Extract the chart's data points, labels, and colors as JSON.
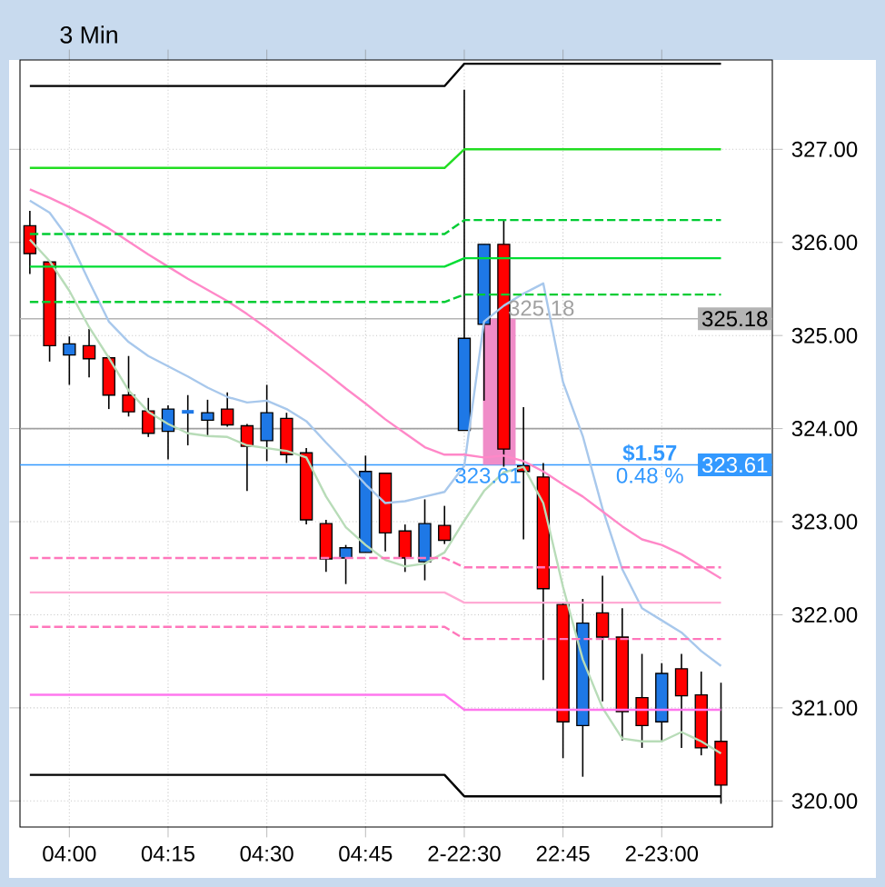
{
  "chart_data": {
    "type": "candlestick",
    "title": "3 Min",
    "categories": [
      null,
      null,
      "04:00",
      null,
      null,
      null,
      null,
      "04:15",
      null,
      null,
      null,
      null,
      "04:30",
      null,
      null,
      null,
      null,
      "04:45",
      null,
      null,
      null,
      null,
      "2-22:30",
      null,
      null,
      null,
      null,
      "22:45",
      null,
      null,
      null,
      null,
      "2-23:00",
      null,
      null,
      null
    ],
    "ylim": [
      319.72,
      327.96
    ],
    "yticks": [
      {
        "value": 320,
        "label": "320.00"
      },
      {
        "value": 321,
        "label": "321.00"
      },
      {
        "value": 322,
        "label": "322.00"
      },
      {
        "value": 323,
        "label": "323.00"
      },
      {
        "value": 324,
        "label": "324.00"
      },
      {
        "value": 325,
        "label": "325.00"
      },
      {
        "value": 326,
        "label": "326.00"
      },
      {
        "value": 327,
        "label": "327.00"
      }
    ],
    "grid": true,
    "series": [
      {
        "type": "bar",
        "color": "#f08cc8",
        "base": [
          null,
          null,
          null,
          null,
          null,
          null,
          null,
          null,
          null,
          null,
          null,
          null,
          null,
          null,
          null,
          null,
          null,
          null,
          null,
          null,
          null,
          null,
          null,
          null,
          323.61,
          null,
          null,
          null,
          null,
          null,
          null,
          null,
          null,
          null,
          null,
          null
        ],
        "values": [
          null,
          null,
          null,
          null,
          null,
          null,
          null,
          null,
          null,
          null,
          null,
          null,
          null,
          null,
          null,
          null,
          null,
          null,
          null,
          null,
          null,
          null,
          null,
          null,
          1.57,
          null,
          null,
          null,
          null,
          null,
          null,
          null,
          null,
          null,
          null,
          null
        ]
      },
      {
        "type": "line",
        "color": "#a8c8ec",
        "values": [
          326.45,
          326.32,
          326.03,
          325.58,
          325.15,
          324.93,
          324.78,
          324.67,
          324.56,
          324.44,
          324.34,
          324.28,
          324.3,
          324.21,
          324.08,
          323.85,
          323.63,
          323.4,
          323.2,
          323.22,
          323.27,
          323.32,
          323.6,
          325.15,
          325.32,
          325.45,
          325.56,
          324.5,
          323.92,
          323.14,
          322.49,
          322.07,
          321.94,
          321.81,
          321.61,
          321.45
        ]
      },
      {
        "type": "line",
        "color": "#ff88c8",
        "values": [
          326.57,
          326.48,
          326.38,
          326.27,
          326.15,
          326.01,
          325.87,
          325.74,
          325.61,
          325.49,
          325.37,
          325.23,
          325.08,
          324.92,
          324.76,
          324.6,
          324.43,
          324.27,
          324.1,
          323.95,
          323.8,
          323.72,
          323.72,
          323.69,
          323.71,
          323.65,
          323.54,
          323.4,
          323.27,
          323.11,
          322.95,
          322.81,
          322.75,
          322.65,
          322.52,
          322.39
        ]
      },
      {
        "type": "line",
        "color": "#b8dcb8",
        "values": [
          326.03,
          325.8,
          325.48,
          325.09,
          324.76,
          324.41,
          324.18,
          324.05,
          323.95,
          323.92,
          323.91,
          323.82,
          323.79,
          323.76,
          323.69,
          323.27,
          322.94,
          322.75,
          322.59,
          322.52,
          322.55,
          322.67,
          323.01,
          323.33,
          323.53,
          323.59,
          323.2,
          322.3,
          321.52,
          321.0,
          320.67,
          320.64,
          320.64,
          320.74,
          320.64,
          320.51
        ]
      },
      {
        "type": "line",
        "color": "#000000",
        "values": [
          327.68,
          327.68,
          327.68,
          327.68,
          327.68,
          327.68,
          327.68,
          327.68,
          327.68,
          327.68,
          327.68,
          327.68,
          327.68,
          327.68,
          327.68,
          327.68,
          327.68,
          327.68,
          327.68,
          327.68,
          327.68,
          327.68,
          327.92,
          327.92,
          327.92,
          327.92,
          327.92,
          327.92,
          327.92,
          327.92,
          327.92,
          327.92,
          327.92,
          327.92,
          327.92,
          327.92
        ]
      },
      {
        "type": "line",
        "color": "#22dd22",
        "values": [
          326.8,
          326.8,
          326.8,
          326.8,
          326.8,
          326.8,
          326.8,
          326.8,
          326.8,
          326.8,
          326.8,
          326.8,
          326.8,
          326.8,
          326.8,
          326.8,
          326.8,
          326.8,
          326.8,
          326.8,
          326.8,
          326.8,
          327.0,
          327.0,
          327.0,
          327.0,
          327.0,
          327.0,
          327.0,
          327.0,
          327.0,
          327.0,
          327.0,
          327.0,
          327.0,
          327.0
        ]
      },
      {
        "type": "line",
        "color": "#00cc33",
        "line_style": "dashed",
        "values": [
          326.09,
          326.09,
          326.09,
          326.09,
          326.09,
          326.09,
          326.09,
          326.09,
          326.09,
          326.09,
          326.09,
          326.09,
          326.09,
          326.09,
          326.09,
          326.09,
          326.09,
          326.09,
          326.09,
          326.09,
          326.09,
          326.09,
          326.24,
          326.24,
          326.24,
          326.24,
          326.24,
          326.24,
          326.24,
          326.24,
          326.24,
          326.24,
          326.24,
          326.24,
          326.24,
          326.24
        ]
      },
      {
        "type": "line",
        "color": "#00dd33",
        "values": [
          325.74,
          325.74,
          325.74,
          325.74,
          325.74,
          325.74,
          325.74,
          325.74,
          325.74,
          325.74,
          325.74,
          325.74,
          325.74,
          325.74,
          325.74,
          325.74,
          325.74,
          325.74,
          325.74,
          325.74,
          325.74,
          325.74,
          325.83,
          325.83,
          325.83,
          325.83,
          325.83,
          325.83,
          325.83,
          325.83,
          325.83,
          325.83,
          325.83,
          325.83,
          325.83,
          325.83
        ]
      },
      {
        "type": "line",
        "color": "#00cc33",
        "line_style": "dashed",
        "values": [
          325.36,
          325.36,
          325.36,
          325.36,
          325.36,
          325.36,
          325.36,
          325.36,
          325.36,
          325.36,
          325.36,
          325.36,
          325.36,
          325.36,
          325.36,
          325.36,
          325.36,
          325.36,
          325.36,
          325.36,
          325.36,
          325.36,
          325.44,
          325.44,
          325.44,
          325.44,
          325.44,
          325.44,
          325.44,
          325.44,
          325.44,
          325.44,
          325.44,
          325.44,
          325.44,
          325.44
        ]
      },
      {
        "type": "line",
        "color": "#ff77bb",
        "line_style": "dashed",
        "values": [
          322.61,
          322.61,
          322.61,
          322.61,
          322.61,
          322.61,
          322.61,
          322.61,
          322.61,
          322.61,
          322.61,
          322.61,
          322.61,
          322.61,
          322.61,
          322.61,
          322.61,
          322.61,
          322.61,
          322.61,
          322.61,
          322.61,
          322.51,
          322.51,
          322.51,
          322.51,
          322.51,
          322.51,
          322.51,
          322.51,
          322.51,
          322.51,
          322.51,
          322.51,
          322.51,
          322.51
        ]
      },
      {
        "type": "line",
        "color": "#ffaad4",
        "values": [
          322.24,
          322.24,
          322.24,
          322.24,
          322.24,
          322.24,
          322.24,
          322.24,
          322.24,
          322.24,
          322.24,
          322.24,
          322.24,
          322.24,
          322.24,
          322.24,
          322.24,
          322.24,
          322.24,
          322.24,
          322.24,
          322.24,
          322.13,
          322.13,
          322.13,
          322.13,
          322.13,
          322.13,
          322.13,
          322.13,
          322.13,
          322.13,
          322.13,
          322.13,
          322.13,
          322.13
        ]
      },
      {
        "type": "line",
        "color": "#ff77bb",
        "line_style": "dashed",
        "values": [
          321.87,
          321.87,
          321.87,
          321.87,
          321.87,
          321.87,
          321.87,
          321.87,
          321.87,
          321.87,
          321.87,
          321.87,
          321.87,
          321.87,
          321.87,
          321.87,
          321.87,
          321.87,
          321.87,
          321.87,
          321.87,
          321.87,
          321.74,
          321.74,
          321.74,
          321.74,
          321.74,
          321.74,
          321.74,
          321.74,
          321.74,
          321.74,
          321.74,
          321.74,
          321.74,
          321.74
        ]
      },
      {
        "type": "line",
        "color": "#ff77ee",
        "values": [
          321.14,
          321.14,
          321.14,
          321.14,
          321.14,
          321.14,
          321.14,
          321.14,
          321.14,
          321.14,
          321.14,
          321.14,
          321.14,
          321.14,
          321.14,
          321.14,
          321.14,
          321.14,
          321.14,
          321.14,
          321.14,
          321.14,
          320.98,
          320.98,
          320.98,
          320.98,
          320.98,
          320.98,
          320.98,
          320.98,
          320.98,
          320.98,
          320.98,
          320.98,
          320.98,
          320.98
        ]
      },
      {
        "type": "line",
        "color": "#000000",
        "values": [
          320.28,
          320.28,
          320.28,
          320.28,
          320.28,
          320.28,
          320.28,
          320.28,
          320.28,
          320.28,
          320.28,
          320.28,
          320.28,
          320.28,
          320.28,
          320.28,
          320.28,
          320.28,
          320.28,
          320.28,
          320.28,
          320.28,
          320.05,
          320.05,
          320.05,
          320.05,
          320.05,
          320.05,
          320.05,
          320.05,
          320.05,
          320.05,
          320.05,
          320.05,
          320.05,
          320.05
        ]
      },
      {
        "colors": [
          "#ff0000",
          "#ff0000",
          "#1e78e6",
          "#ff0000",
          "#ff0000",
          "#ff0000",
          "#ff0000",
          "#1e78e6",
          "#1e78e6",
          "#1e78e6",
          "#ff0000",
          "#ff0000",
          "#1e78e6",
          "#ff0000",
          "#ff0000",
          "#ff0000",
          "#1e78e6",
          "#1e78e6",
          "#ff0000",
          "#ff0000",
          "#1e78e6",
          "#ff0000",
          "#1e78e6",
          "#1e78e6",
          "#ff0000",
          "#ff0000",
          "#ff0000",
          "#ff0000",
          "#1e78e6",
          "#ff0000",
          "#ff0000",
          "#ff0000",
          "#1e78e6",
          "#ff0000",
          "#ff0000",
          "#ff0000"
        ],
        "ohlc": [
          [
            326.18,
            326.34,
            325.66,
            325.88
          ],
          [
            325.79,
            325.79,
            324.72,
            324.89
          ],
          [
            324.79,
            324.99,
            324.47,
            324.91
          ],
          [
            324.89,
            325.07,
            324.55,
            324.75
          ],
          [
            324.76,
            324.78,
            324.21,
            324.36
          ],
          [
            324.36,
            324.78,
            324.13,
            324.18
          ],
          [
            324.19,
            324.33,
            323.91,
            323.95
          ],
          [
            323.97,
            324.25,
            323.67,
            324.21
          ],
          [
            324.18,
            324.36,
            323.82,
            324.18
          ],
          [
            324.09,
            324.31,
            323.92,
            324.17
          ],
          [
            324.21,
            324.39,
            324.02,
            324.04
          ],
          [
            324.03,
            324.05,
            323.33,
            323.81
          ],
          [
            323.87,
            324.47,
            323.65,
            324.17
          ],
          [
            324.11,
            324.17,
            323.63,
            323.72
          ],
          [
            323.74,
            323.79,
            322.97,
            323.02
          ],
          [
            322.98,
            323.02,
            322.46,
            322.6
          ],
          [
            322.61,
            322.75,
            322.33,
            322.72
          ],
          [
            322.67,
            323.71,
            322.67,
            323.54
          ],
          [
            323.52,
            323.52,
            322.68,
            322.88
          ],
          [
            322.9,
            322.97,
            322.46,
            322.61
          ],
          [
            322.57,
            323.24,
            322.37,
            322.98
          ],
          [
            322.96,
            323.17,
            322.76,
            322.8
          ],
          [
            323.98,
            327.64,
            323.98,
            324.97
          ],
          [
            325.12,
            325.98,
            324.3,
            325.98
          ],
          [
            325.98,
            326.25,
            323.59,
            323.78
          ],
          [
            323.6,
            324.23,
            322.81,
            323.54
          ],
          [
            323.48,
            323.63,
            321.3,
            322.28
          ],
          [
            322.11,
            322.13,
            320.46,
            320.85
          ],
          [
            320.81,
            322.17,
            320.26,
            321.91
          ],
          [
            322.02,
            322.42,
            321.07,
            321.76
          ],
          [
            321.76,
            322.07,
            320.65,
            320.96
          ],
          [
            321.11,
            321.58,
            320.57,
            320.81
          ],
          [
            320.85,
            321.48,
            320.63,
            321.37
          ],
          [
            321.42,
            321.58,
            320.57,
            321.13
          ],
          [
            321.14,
            321.39,
            320.49,
            320.57
          ],
          [
            320.64,
            321.27,
            319.97,
            320.17
          ]
        ]
      }
    ],
    "ref_lines": [
      {
        "axis": "y",
        "value": 324,
        "color": "#a0a0a0"
      },
      {
        "axis": "y",
        "value": 325.18,
        "label": "325.18",
        "color": "#b4b4b4"
      },
      {
        "axis": "y",
        "value": 323.61,
        "label": "323.61",
        "color": "#3399ff"
      }
    ],
    "annotations": [
      {
        "text": "325.18",
        "y": 325.18
      },
      {
        "text": "323.61",
        "y": 323.61
      },
      {
        "text": "$1.57",
        "y": 323.61
      },
      {
        "text": "0.48 %",
        "y": 323.61
      }
    ]
  }
}
